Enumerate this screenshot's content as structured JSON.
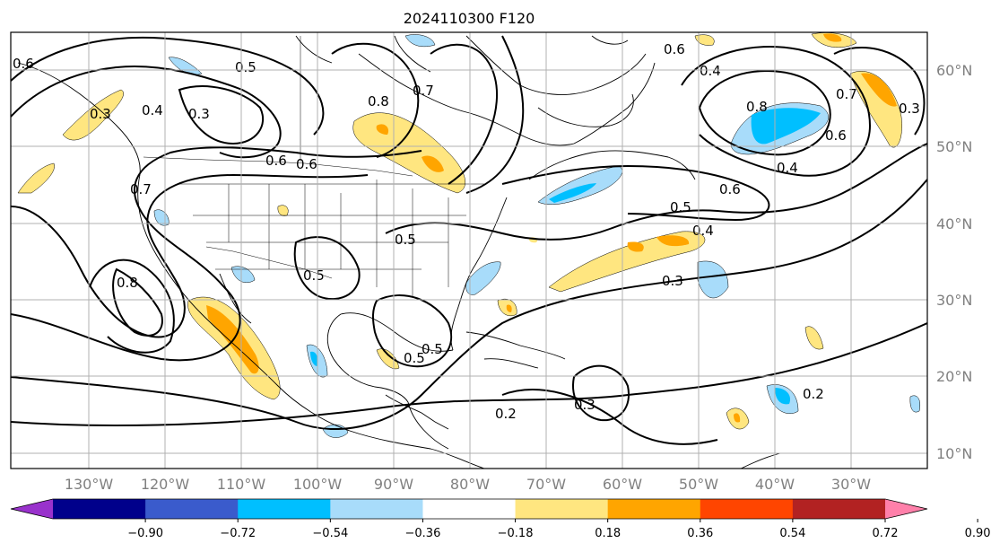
{
  "title": "2024110300 F120",
  "map": {
    "lon_labels": [
      "130°W",
      "120°W",
      "110°W",
      "100°W",
      "90°W",
      "80°W",
      "70°W",
      "60°W",
      "50°W",
      "40°W",
      "30°W"
    ],
    "lat_labels": [
      "60°N",
      "50°N",
      "40°N",
      "30°N",
      "20°N",
      "10°N"
    ],
    "gridlines": true,
    "contour_labels": [
      "0.6",
      "0.3",
      "0.5",
      "0.4",
      "0.3",
      "0.8",
      "0.7",
      "0.6",
      "0.7",
      "0.8",
      "0.5",
      "0.5",
      "0.6",
      "0.5",
      "0.4",
      "0.3",
      "0.8",
      "0.4",
      "0.6",
      "0.7",
      "0.3",
      "0.6",
      "0.4",
      "0.2",
      "0.5",
      "0.2",
      "0.3",
      "0.5",
      "0.6"
    ]
  },
  "colorbar": {
    "ticks": [
      "−0.90",
      "−0.72",
      "−0.54",
      "−0.36",
      "−0.18",
      "0.18",
      "0.36",
      "0.54",
      "0.72",
      "0.90"
    ],
    "colors": [
      "#9932cc",
      "#00008b",
      "#3a5bcc",
      "#00bfff",
      "#a8dcfa",
      "#ffffff",
      "#ffe680",
      "#ffa500",
      "#ff4500",
      "#b22222",
      "#ff80aa"
    ]
  }
}
